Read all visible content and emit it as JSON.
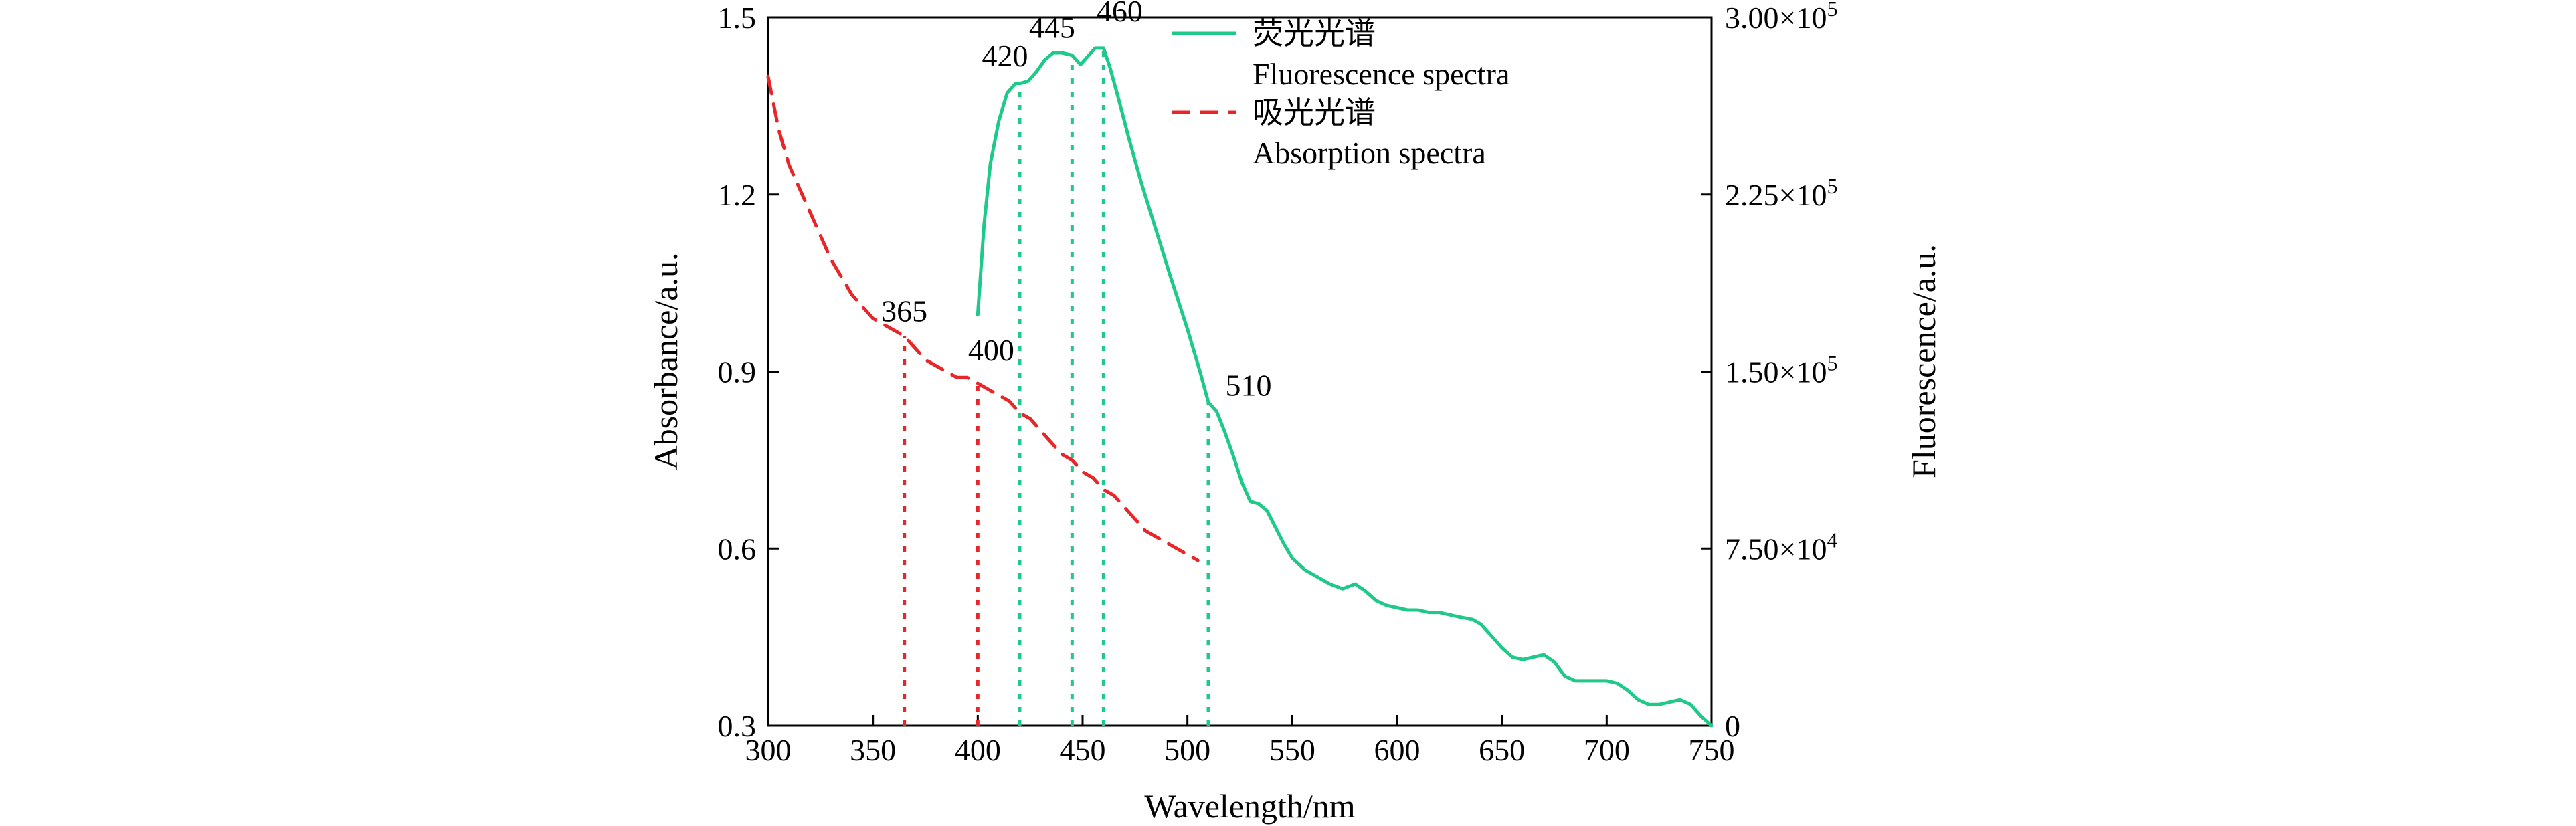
{
  "chart_data": {
    "type": "line",
    "xlabel": "Wavelength/nm",
    "ylabel_left": "Absorbance/a.u.",
    "ylabel_right": "Fluorescence/a.u.",
    "xlim": [
      300,
      750
    ],
    "ylim_left": [
      0.3,
      1.5
    ],
    "ylim_right": [
      0,
      300000
    ],
    "x_ticks": [
      300,
      350,
      400,
      450,
      500,
      550,
      600,
      650,
      700,
      750
    ],
    "x_tick_labels": [
      "300",
      "350",
      "400",
      "450",
      "500",
      "550",
      "600",
      "650",
      "700",
      "750"
    ],
    "y_left_ticks": [
      0.3,
      0.6,
      0.9,
      1.2,
      1.5
    ],
    "y_left_tick_labels": [
      "0.3",
      "0.6",
      "0.9",
      "1.2",
      "1.5"
    ],
    "y_right_ticks": [
      0,
      75000,
      150000,
      225000,
      300000
    ],
    "y_right_tick_labels": [
      {
        "mantissa": "0",
        "exp": ""
      },
      {
        "mantissa": "7.50×10",
        "exp": "4"
      },
      {
        "mantissa": "1.50×10",
        "exp": "5"
      },
      {
        "mantissa": "2.25×10",
        "exp": "5"
      },
      {
        "mantissa": "3.00×10",
        "exp": "5"
      }
    ],
    "grid": false,
    "legend_position": "top-right",
    "series": [
      {
        "name_zh": "荧光光谱",
        "name_en": "Fluorescence spectra",
        "axis": "right",
        "color": "#1ec98a",
        "style": "solid",
        "x": [
          400,
          403,
          406,
          410,
          414,
          418,
          420,
          424,
          428,
          432,
          436,
          440,
          445,
          449,
          452,
          456,
          460,
          463,
          467,
          472,
          478,
          485,
          492,
          500,
          506,
          510,
          514,
          518,
          522,
          526,
          530,
          534,
          538,
          542,
          546,
          550,
          556,
          562,
          568,
          574,
          580,
          585,
          590,
          595,
          600,
          605,
          610,
          615,
          620,
          625,
          630,
          636,
          640,
          645,
          650,
          655,
          660,
          665,
          670,
          675,
          680,
          685,
          690,
          695,
          700,
          705,
          710,
          715,
          720,
          725,
          730,
          735,
          740,
          745,
          750
        ],
        "y": [
          174000,
          212000,
          238000,
          256000,
          268000,
          272000,
          272000,
          273000,
          277000,
          282000,
          285000,
          285000,
          284000,
          280000,
          283000,
          287000,
          287000,
          279000,
          266000,
          249000,
          230000,
          210000,
          190000,
          168000,
          150000,
          137000,
          133000,
          124000,
          114000,
          103000,
          95000,
          94000,
          91000,
          84000,
          77000,
          71000,
          66000,
          63000,
          60000,
          58000,
          60000,
          57000,
          53000,
          51000,
          50000,
          49000,
          49000,
          48000,
          48000,
          47000,
          46000,
          45000,
          43000,
          38000,
          33000,
          29000,
          28000,
          29000,
          30000,
          27000,
          21000,
          19000,
          19000,
          19000,
          19000,
          18000,
          15000,
          11000,
          9000,
          9000,
          10000,
          11000,
          9000,
          4000,
          0
        ]
      },
      {
        "name_zh": "吸光光谱",
        "name_en": "Absorption spectra",
        "axis": "left",
        "color": "#e8262a",
        "style": "dashed",
        "x": [
          300,
          305,
          310,
          315,
          320,
          325,
          330,
          335,
          340,
          345,
          350,
          355,
          360,
          365,
          370,
          375,
          380,
          385,
          390,
          395,
          400,
          405,
          410,
          415,
          420,
          425,
          430,
          435,
          440,
          445,
          450,
          455,
          460,
          465,
          470,
          475,
          480,
          485,
          490,
          495,
          500,
          505
        ],
        "y": [
          1.4,
          1.31,
          1.25,
          1.21,
          1.17,
          1.13,
          1.09,
          1.06,
          1.03,
          1.01,
          0.99,
          0.98,
          0.97,
          0.96,
          0.94,
          0.92,
          0.91,
          0.9,
          0.89,
          0.89,
          0.88,
          0.87,
          0.86,
          0.85,
          0.83,
          0.82,
          0.8,
          0.78,
          0.76,
          0.75,
          0.73,
          0.72,
          0.7,
          0.69,
          0.67,
          0.65,
          0.63,
          0.62,
          0.61,
          0.6,
          0.59,
          0.58
        ]
      }
    ],
    "peak_markers": [
      {
        "label": "365",
        "x": 365,
        "series": "Absorption spectra",
        "y": 0.96
      },
      {
        "label": "400",
        "x": 400,
        "series": "Absorption spectra",
        "y": 0.88
      },
      {
        "label": "420",
        "x": 420,
        "series": "Fluorescence spectra",
        "y": 272000
      },
      {
        "label": "445",
        "x": 445,
        "series": "Fluorescence spectra",
        "y": 284000
      },
      {
        "label": "460",
        "x": 460,
        "series": "Fluorescence spectra",
        "y": 287000
      },
      {
        "label": "510",
        "x": 510,
        "series": "Fluorescence spectra",
        "y": 137000
      }
    ]
  }
}
